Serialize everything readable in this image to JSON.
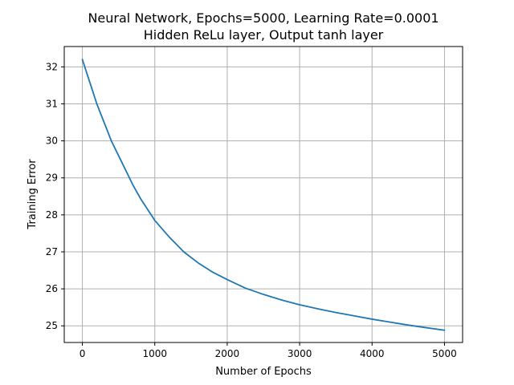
{
  "chart_data": {
    "type": "line",
    "title": "Neural Network, Epochs=5000, Learning Rate=0.0001",
    "subtitle": "Hidden ReLu layer, Output tanh layer",
    "xlabel": "Number of Epochs",
    "ylabel": "Training Error",
    "xlim": [
      -250,
      5250
    ],
    "ylim": [
      24.55,
      32.55
    ],
    "xticks": [
      0,
      1000,
      2000,
      3000,
      4000,
      5000
    ],
    "yticks": [
      25,
      26,
      27,
      28,
      29,
      30,
      31,
      32
    ],
    "grid": true,
    "series": [
      {
        "color": "#1f77b4",
        "x": [
          0,
          100,
          200,
          300,
          400,
          500,
          600,
          700,
          800,
          900,
          1000,
          1200,
          1400,
          1600,
          1800,
          2000,
          2250,
          2500,
          2750,
          3000,
          3250,
          3500,
          3750,
          4000,
          4250,
          4500,
          4750,
          5000
        ],
        "y": [
          32.2,
          31.6,
          31.0,
          30.5,
          30.0,
          29.6,
          29.2,
          28.8,
          28.45,
          28.15,
          27.85,
          27.4,
          27.0,
          26.7,
          26.45,
          26.25,
          26.02,
          25.85,
          25.7,
          25.57,
          25.46,
          25.36,
          25.27,
          25.18,
          25.1,
          25.02,
          24.95,
          24.88
        ]
      }
    ]
  }
}
